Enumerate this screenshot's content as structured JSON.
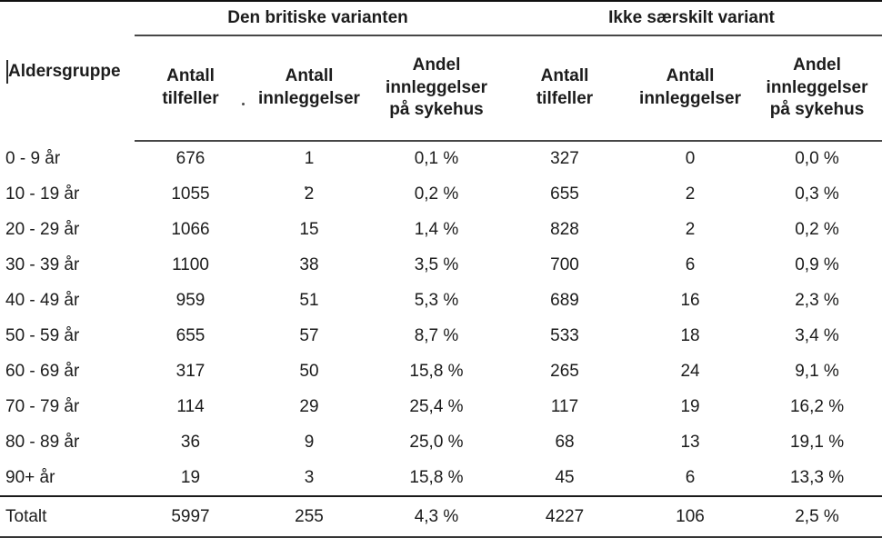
{
  "page": {
    "background_color": "#ffffff",
    "text_color": "#1c1c1c",
    "rule_color_thin": "#474747",
    "rule_color_thick": "#101010"
  },
  "table": {
    "corner_header": "Aldersgruppe",
    "groups": [
      {
        "label": "Den britiske varianten"
      },
      {
        "label": "Ikke særskilt variant"
      }
    ],
    "column_headers": [
      "Antall\ntilfeller",
      "Antall\ninnleggelser",
      "Andel\ninnleggelser\npå sykehus",
      "Antall\ntilfeller",
      "Antall\ninnleggelser",
      "Andel\ninnleggelser\npå sykehus"
    ],
    "rows": [
      {
        "label": "0 - 9 år",
        "values": [
          "676",
          "1",
          "0,1 %",
          "327",
          "0",
          "0,0 %"
        ]
      },
      {
        "label": "10 - 19 år",
        "values": [
          "1055",
          "2",
          "0,2 %",
          "655",
          "2",
          "0,3 %"
        ]
      },
      {
        "label": "20 - 29 år",
        "values": [
          "1066",
          "15",
          "1,4 %",
          "828",
          "2",
          "0,2 %"
        ]
      },
      {
        "label": "30 - 39 år",
        "values": [
          "1100",
          "38",
          "3,5 %",
          "700",
          "6",
          "0,9 %"
        ]
      },
      {
        "label": "40 - 49 år",
        "values": [
          "959",
          "51",
          "5,3 %",
          "689",
          "16",
          "2,3 %"
        ]
      },
      {
        "label": "50 - 59 år",
        "values": [
          "655",
          "57",
          "8,7 %",
          "533",
          "18",
          "3,4 %"
        ]
      },
      {
        "label": "60 - 69 år",
        "values": [
          "317",
          "50",
          "15,8 %",
          "265",
          "24",
          "9,1 %"
        ]
      },
      {
        "label": "70 - 79 år",
        "values": [
          "114",
          "29",
          "25,4 %",
          "117",
          "19",
          "16,2 %"
        ]
      },
      {
        "label": "80 - 89 år",
        "values": [
          "36",
          "9",
          "25,0 %",
          "68",
          "13",
          "19,1 %"
        ]
      },
      {
        "label": "90+ år",
        "values": [
          "19",
          "3",
          "15,8 %",
          "45",
          "6",
          "13,3 %"
        ]
      }
    ],
    "total_row": {
      "label": "Totalt",
      "values": [
        "5997",
        "255",
        "4,3 %",
        "4227",
        "106",
        "2,5 %"
      ]
    }
  }
}
